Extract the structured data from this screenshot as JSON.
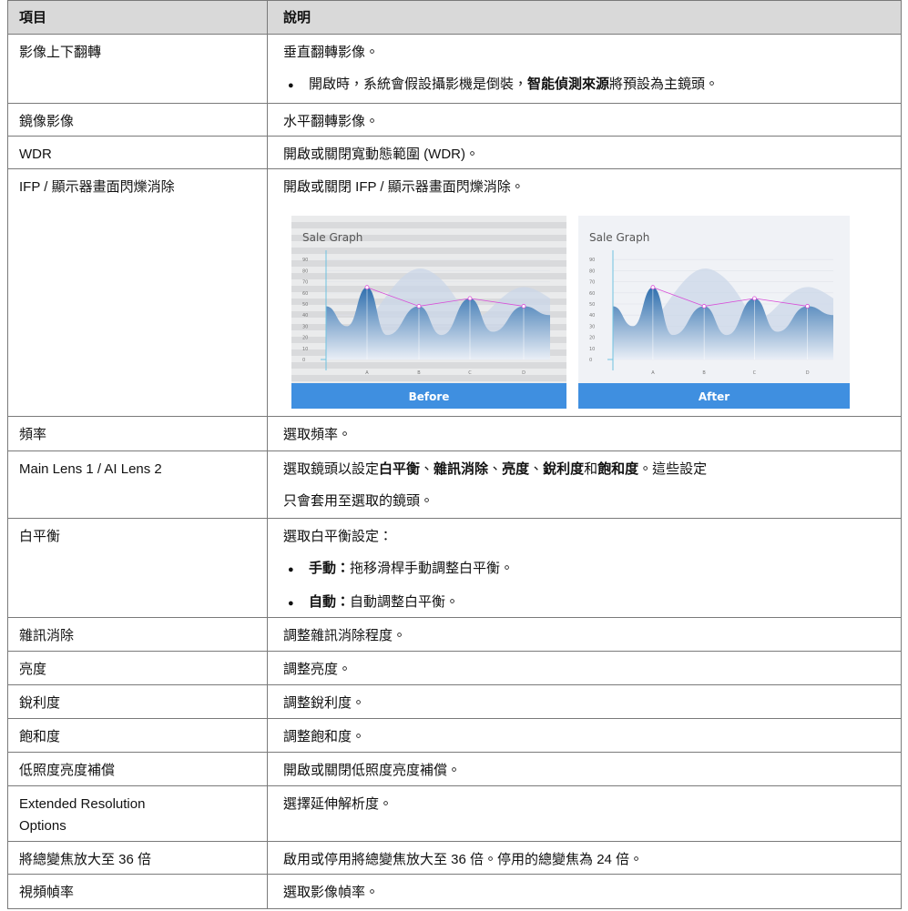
{
  "table": {
    "header": [
      "項目",
      "說明"
    ],
    "rows": [
      {
        "item": "影像上下翻轉",
        "desc": [
          {
            "parts": [
              "垂直翻轉影像。"
            ]
          },
          {
            "bullet": "●",
            "parts": [
              "開啟時，系統會假設攝影機是倒裝，",
              {
                "text": "智能偵測來源",
                "bold": true
              },
              "將預設為主鏡頭。"
            ]
          }
        ]
      },
      {
        "item": "鏡像影像",
        "desc": [
          {
            "parts": [
              "水平翻轉影像。"
            ]
          }
        ]
      },
      {
        "item": "WDR",
        "desc": [
          {
            "parts": [
              "開啟或關閉寬動態範圍 (WDR)。"
            ]
          }
        ]
      },
      {
        "item": "IFP / 顯示器畫面閃爍消除",
        "desc": [
          {
            "parts": [
              "開啟或關閉 IFP / 顯示器畫面閃爍消除。"
            ]
          }
        ],
        "figures": [
          {
            "title": "Sale Graph",
            "yticks": [
              0,
              10,
              20,
              30,
              40,
              50,
              60,
              70,
              80,
              90
            ],
            "categories": [
              "A",
              "B",
              "C",
              "D"
            ],
            "values": [
              65,
              48,
              55,
              48
            ],
            "caption": "Before"
          },
          {
            "title": "Sale Graph",
            "yticks": [
              0,
              10,
              20,
              30,
              40,
              50,
              60,
              70,
              80,
              90
            ],
            "categories": [
              "A",
              "B",
              "C",
              "D"
            ],
            "values": [
              65,
              48,
              55,
              48
            ],
            "caption": "After"
          }
        ]
      },
      {
        "item": "頻率",
        "desc": [
          {
            "parts": [
              "選取頻率。"
            ]
          }
        ]
      },
      {
        "item": "Main Lens 1 / AI Lens 2",
        "desc": [
          {
            "parts": [
              "選取鏡頭以設定",
              {
                "text": "白平衡",
                "bold": true
              },
              "、",
              {
                "text": "雜訊消除",
                "bold": true
              },
              "、",
              {
                "text": "亮度",
                "bold": true
              },
              "、",
              {
                "text": "銳利度",
                "bold": true
              },
              "和",
              {
                "text": "飽和度",
                "bold": true
              },
              "。這些設定"
            ]
          },
          {
            "parts": [
              "只會套用至選取的鏡頭。"
            ]
          }
        ]
      },
      {
        "item": "白平衡",
        "desc": [
          {
            "parts": [
              "選取白平衡設定："
            ]
          },
          {
            "bullet": "●",
            "parts": [
              {
                "text": "手動：",
                "bold": true
              },
              "拖移滑桿手動調整白平衡。"
            ]
          },
          {
            "bullet": "●",
            "parts": [
              {
                "text": "自動：",
                "bold": true
              },
              "自動調整白平衡。"
            ]
          }
        ]
      },
      {
        "item": "雜訊消除",
        "desc": [
          {
            "parts": [
              "調整雜訊消除程度。"
            ]
          }
        ]
      },
      {
        "item": "亮度",
        "desc": [
          {
            "parts": [
              "調整亮度。"
            ]
          }
        ]
      },
      {
        "item": "銳利度",
        "desc": [
          {
            "parts": [
              "調整銳利度。"
            ]
          }
        ]
      },
      {
        "item": "飽和度",
        "desc": [
          {
            "parts": [
              "調整飽和度。"
            ]
          }
        ]
      },
      {
        "item": "低照度亮度補償",
        "desc": [
          {
            "parts": [
              "開啟或關閉低照度亮度補償。"
            ]
          }
        ]
      },
      {
        "item": [
          "Extended Resolution",
          "Options"
        ],
        "desc": [
          {
            "parts": [
              "選擇延伸解析度。"
            ]
          }
        ]
      },
      {
        "item": "將總變焦放大至 36 倍",
        "desc": [
          {
            "parts": [
              "啟用或停用將總變焦放大至 36 倍。停用的總變焦為 24 倍。"
            ]
          }
        ]
      },
      {
        "item": "視頻幀率",
        "desc": [
          {
            "parts": [
              "選取影像幀率。"
            ]
          }
        ]
      }
    ]
  }
}
